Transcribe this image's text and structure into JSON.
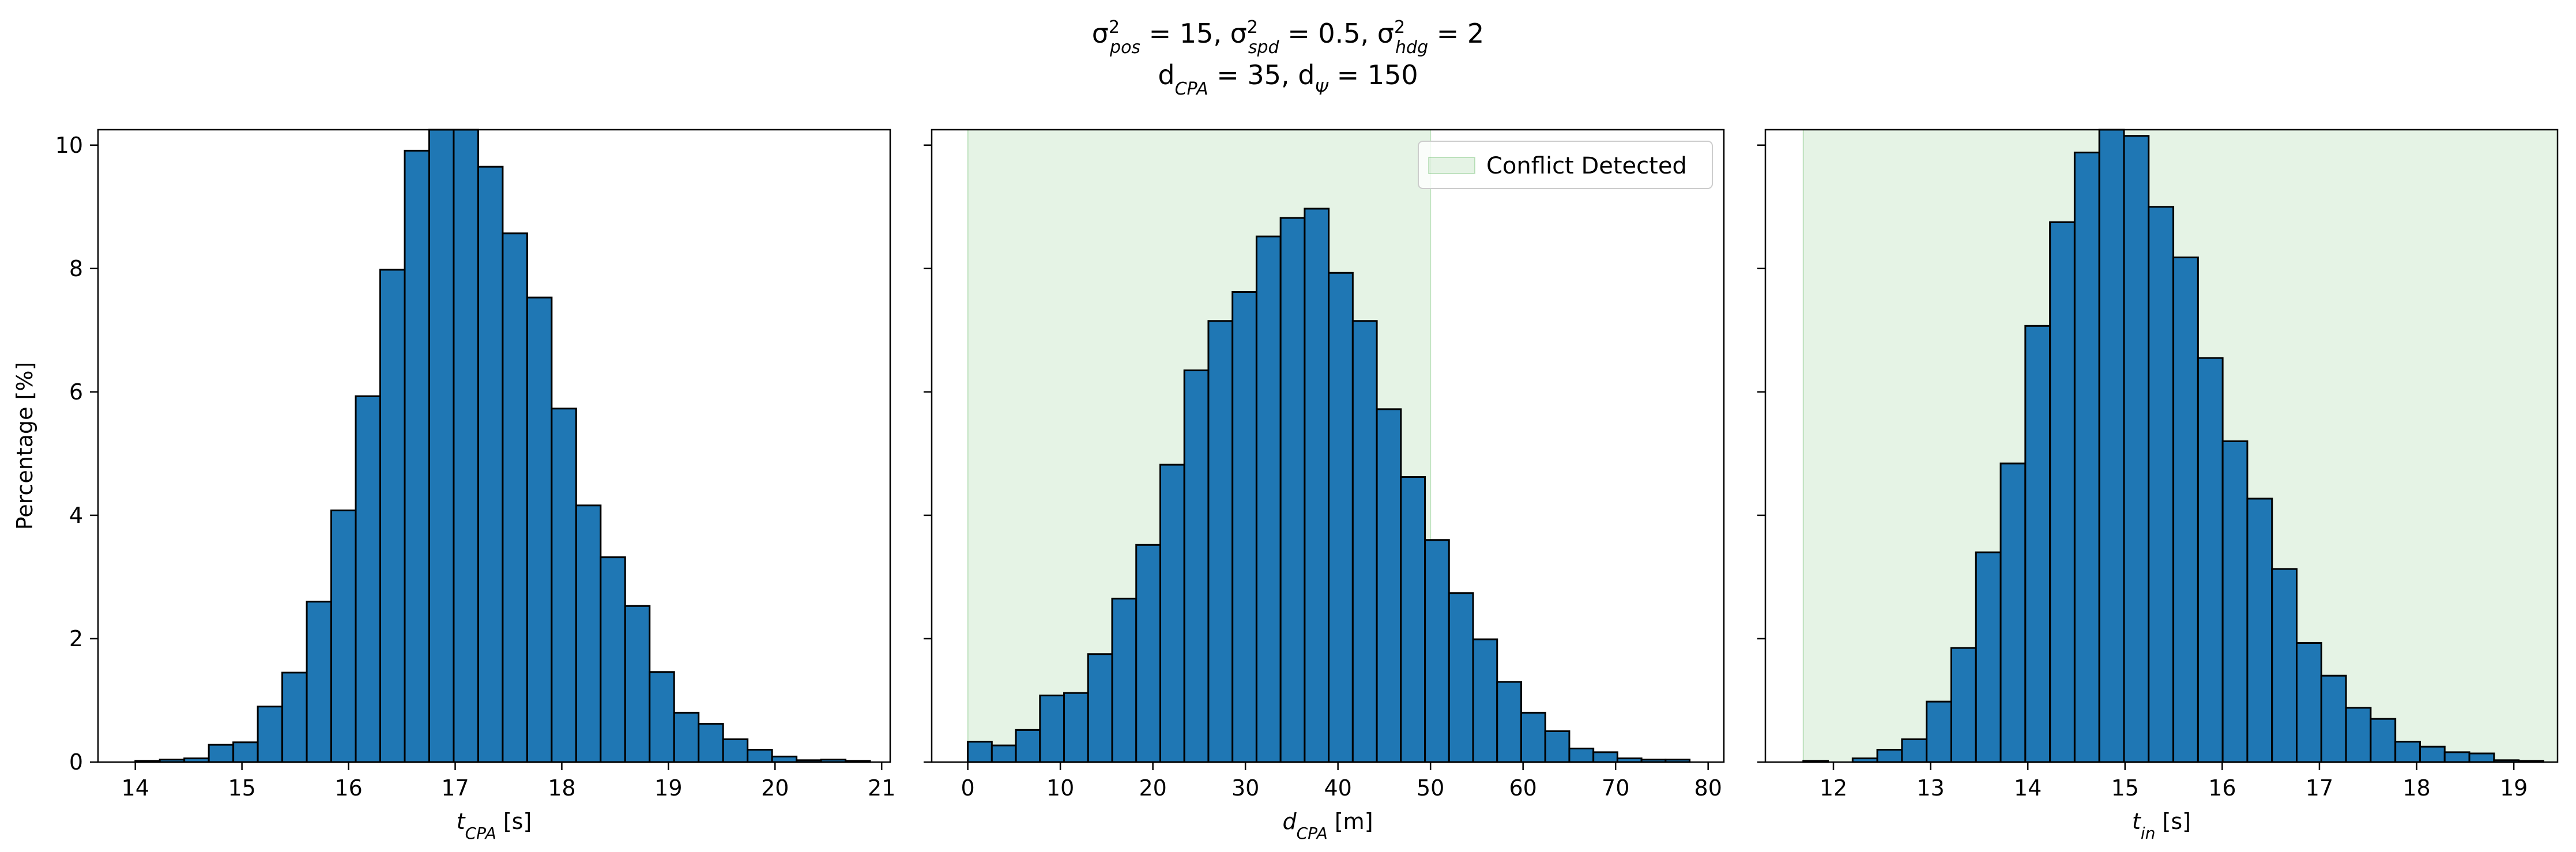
{
  "figure": {
    "title_line1_parts": [
      {
        "t": "σ"
      },
      {
        "sup": "2",
        "sub": "pos"
      },
      {
        "t": " = 15, σ"
      },
      {
        "sup": "2",
        "sub": "spd"
      },
      {
        "t": " = 0.5, σ"
      },
      {
        "sup": "2",
        "sub": "hdg"
      },
      {
        "t": " = 2"
      }
    ],
    "title_line2_parts": [
      {
        "t": "d"
      },
      {
        "sub": "CPA"
      },
      {
        "t": " = 35, d"
      },
      {
        "sub": "Ψ"
      },
      {
        "t": " = 150"
      }
    ]
  },
  "colors": {
    "bar_fill": "#1f77b4",
    "bar_edge": "#000000",
    "span_fill": "#2ca02c",
    "span_opacity": 0.12
  },
  "chart_data": [
    {
      "type": "bar",
      "xlabel_main": "t",
      "xlabel_sub": "CPA",
      "xlabel_unit": " [s]",
      "ylabel": "Percentage [%]",
      "xlim": [
        13.65,
        21.08
      ],
      "ylim": [
        0,
        10.25
      ],
      "xticks": [
        14,
        15,
        16,
        17,
        18,
        19,
        20,
        21
      ],
      "yticks": [
        0,
        2,
        4,
        6,
        8,
        10
      ],
      "bin_start": 14.0,
      "bin_width": 0.2297,
      "values": [
        0.02,
        0.04,
        0.06,
        0.28,
        0.32,
        0.9,
        1.45,
        2.6,
        4.08,
        5.93,
        7.98,
        9.91,
        10.3,
        10.3,
        9.65,
        8.57,
        7.53,
        5.73,
        4.16,
        3.32,
        2.53,
        1.46,
        0.8,
        0.62,
        0.37,
        0.2,
        0.09,
        0.03,
        0.04,
        0.02
      ],
      "shaded_span": null,
      "legend": null
    },
    {
      "type": "bar",
      "xlabel_main": "d",
      "xlabel_sub": "CPA",
      "xlabel_unit": " [m]",
      "ylabel": "",
      "xlim": [
        -3.9,
        81.7
      ],
      "ylim": [
        0,
        10.25
      ],
      "xticks": [
        0,
        10,
        20,
        30,
        40,
        50,
        60,
        70,
        80
      ],
      "yticks": [
        0,
        2,
        4,
        6,
        8,
        10
      ],
      "bin_start": 0.0,
      "bin_width": 2.6,
      "values": [
        0.33,
        0.27,
        0.52,
        1.08,
        1.12,
        1.75,
        2.65,
        3.52,
        4.82,
        6.35,
        7.15,
        7.62,
        8.52,
        8.82,
        8.97,
        7.93,
        7.15,
        5.72,
        4.62,
        3.6,
        2.74,
        1.99,
        1.3,
        0.8,
        0.5,
        0.22,
        0.16,
        0.06,
        0.04,
        0.04
      ],
      "shaded_span": [
        0,
        50
      ],
      "legend": {
        "label": "Conflict Detected",
        "placement": "upper right"
      }
    },
    {
      "type": "bar",
      "xlabel_main": "t",
      "xlabel_sub": "in",
      "xlabel_unit": " [s]",
      "ylabel": "",
      "xlim": [
        11.3,
        19.45
      ],
      "ylim": [
        0,
        10.25
      ],
      "xticks": [
        12,
        13,
        14,
        15,
        16,
        17,
        18,
        19
      ],
      "yticks": [
        0,
        2,
        4,
        6,
        8,
        10
      ],
      "bin_start": 11.69,
      "bin_width": 0.2538,
      "values": [
        0.02,
        0.0,
        0.06,
        0.2,
        0.37,
        0.98,
        1.85,
        3.4,
        4.84,
        7.07,
        8.75,
        9.88,
        10.3,
        10.15,
        9.0,
        8.18,
        6.55,
        5.2,
        4.27,
        3.13,
        1.93,
        1.4,
        0.88,
        0.7,
        0.33,
        0.25,
        0.16,
        0.14,
        0.03,
        0.02
      ],
      "shaded_span": [
        11.69,
        19.45
      ],
      "legend": null
    }
  ]
}
